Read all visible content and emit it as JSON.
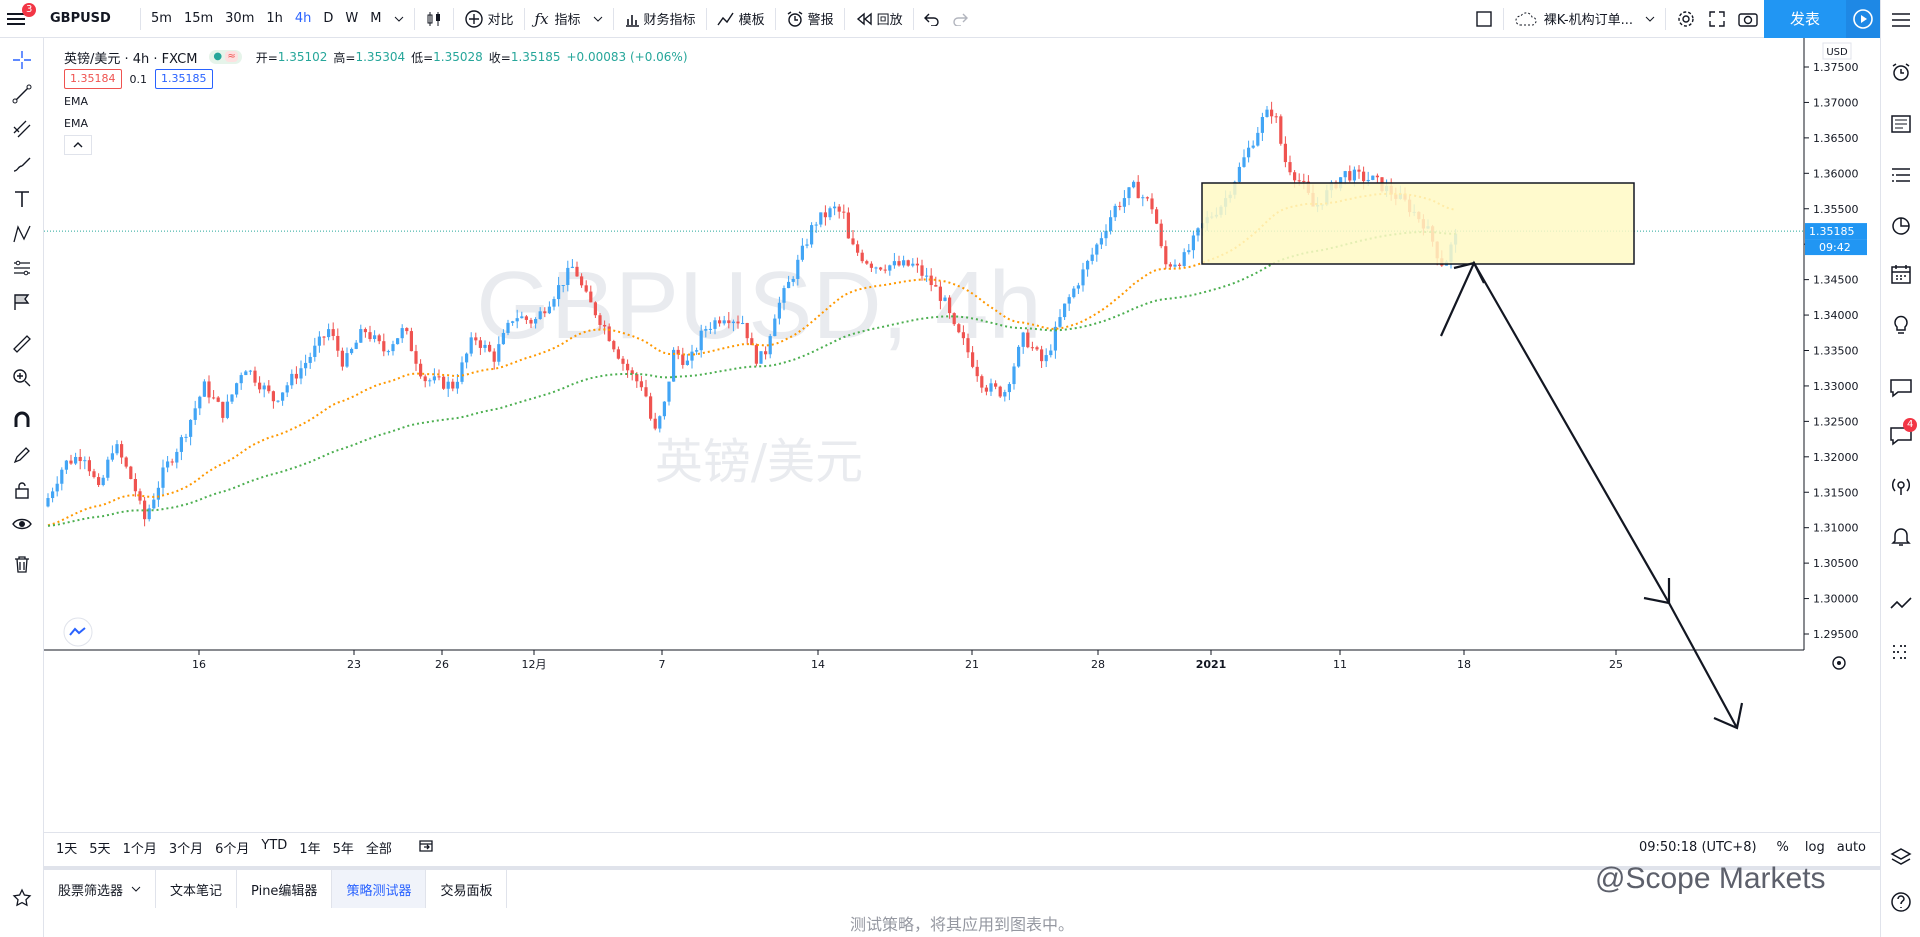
{
  "topbar": {
    "symbol": "GBPUSD",
    "intervals": [
      "5m",
      "15m",
      "30m",
      "1h",
      "4h",
      "D",
      "W",
      "M"
    ],
    "active_interval": "4h",
    "compare": "对比",
    "indicators": "指标",
    "financials": "财务指标",
    "templates": "模板",
    "alert": "警报",
    "replay": "回放",
    "layout_name": "裸K-机构订单...",
    "publish": "发表",
    "menu_badge": "3"
  },
  "legend": {
    "title": "英镑/美元 · 4h · FXCM",
    "open_label": "开=",
    "open": "1.35102",
    "high_label": "高=",
    "high": "1.35304",
    "low_label": "低=",
    "low": "1.35028",
    "close_label": "收=",
    "close": "1.35185",
    "change": "+0.00083 (+0.06%)",
    "bid": "1.35184",
    "spread": "0.1",
    "ask": "1.35185",
    "ema1": "EMA",
    "ema2": "EMA"
  },
  "watermark": {
    "line1": "GBPUSD, 4h",
    "line2": "英镑/美元"
  },
  "price_axis": {
    "currency": "USD",
    "ticks": [
      "1.37500",
      "1.37000",
      "1.36500",
      "1.36000",
      "1.35500",
      "1.35000",
      "1.34500",
      "1.34000",
      "1.33500",
      "1.33000",
      "1.32500",
      "1.32000",
      "1.31500",
      "1.31000",
      "1.30500",
      "1.30000",
      "1.29500"
    ],
    "last_price": "1.35185",
    "countdown": "09:42"
  },
  "time_axis": {
    "labels": [
      "16",
      "23",
      "26",
      "12月",
      "7",
      "14",
      "21",
      "28",
      "2021",
      "11",
      "18",
      "25"
    ]
  },
  "chart_data": {
    "type": "candlestick",
    "symbol": "GBPUSD",
    "interval": "4h",
    "ylim": [
      1.292,
      1.38
    ],
    "last_close": 1.35185,
    "ema_fast_color": "#ff9800",
    "ema_slow_color": "#4caf50",
    "up_color": "#42a5f5",
    "down_color": "#ef5350"
  },
  "bottom_toolbar": {
    "ranges": [
      "1天",
      "5天",
      "1个月",
      "3个月",
      "6个月",
      "YTD",
      "1年",
      "5年",
      "全部"
    ],
    "clock": "09:50:18 (UTC+8)",
    "percent": "%",
    "log": "log",
    "auto": "auto"
  },
  "bottom_tabs": [
    "股票筛选器",
    "文本笔记",
    "Pine编辑器",
    "策略测试器",
    "交易面板"
  ],
  "active_tab": "策略测试器",
  "footer_message": "测试策略，将其应用到图表中。",
  "brand_watermark": "@Scope Markets",
  "rightbar_badge": "4"
}
